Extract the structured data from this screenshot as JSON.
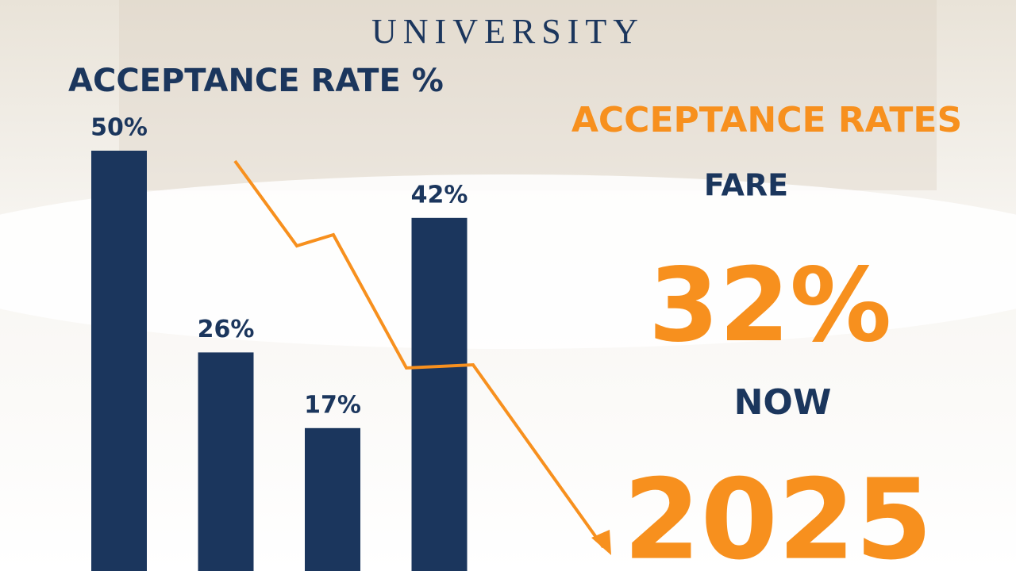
{
  "chart_data": {
    "type": "bar",
    "header": "UNIVERSITY",
    "title": "ACCEPTANCE RATE %",
    "categories": [
      null,
      null,
      null,
      null
    ],
    "values": [
      50,
      26,
      17,
      42
    ],
    "value_labels": [
      "50%",
      "26%",
      "17%",
      "42%"
    ],
    "color": "#1b365d",
    "annotations": [
      "ACCEPTANCE RATES",
      "FARE",
      "32%",
      "NOW",
      "2025"
    ]
  }
}
